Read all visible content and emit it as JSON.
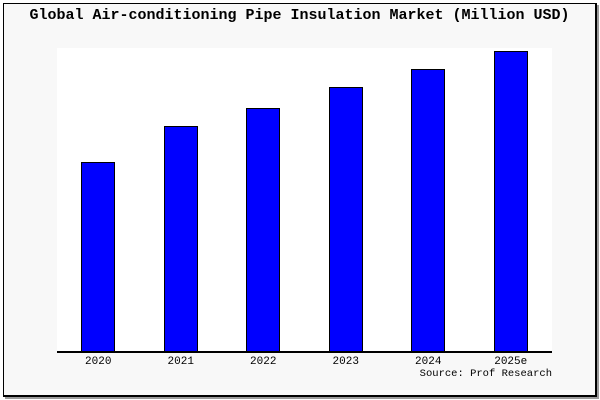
{
  "window": {
    "background_color": "#f8f8f8",
    "border_color": "#000000"
  },
  "chart": {
    "source": "Source: Prof Research"
  },
  "chart_data": {
    "type": "bar",
    "title": "Global Air-conditioning Pipe Insulation Market (Million USD)",
    "categories": [
      "2020",
      "2021",
      "2022",
      "2023",
      "2024",
      "2025e"
    ],
    "values": [
      63,
      75,
      81,
      88,
      94,
      100
    ],
    "xlabel": "",
    "ylabel": "",
    "ylim": [
      0,
      101
    ],
    "grid": false,
    "legend": false,
    "bar_color": "#0000ff",
    "bar_border_color": "#000000",
    "plot_background": "#ffffff",
    "axis_color": "#000000",
    "note": "No numeric y-axis is shown in the image; values are relative bar heights estimated from pixels, scaled so 2025e = 100."
  }
}
